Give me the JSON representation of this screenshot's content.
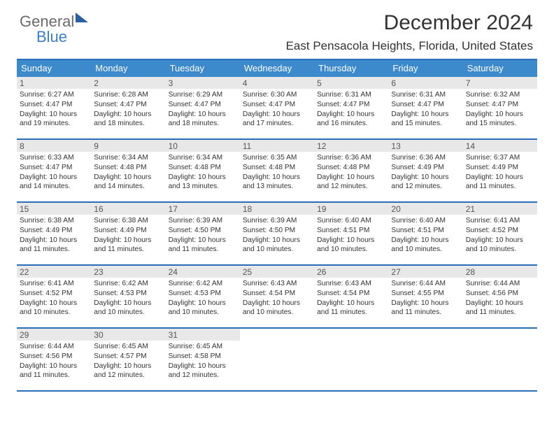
{
  "logo": {
    "part1": "General",
    "part2": "Blue"
  },
  "title": "December 2024",
  "subtitle": "East Pensacola Heights, Florida, United States",
  "colors": {
    "header_bg": "#3c89cc",
    "header_text": "#ffffff",
    "border": "#2a6db8",
    "daynum_bg": "#e8e8e8",
    "daynum_text": "#555555",
    "body_text": "#333333",
    "logo_gray": "#6b6b6b",
    "logo_blue": "#3b7fc4"
  },
  "day_headers": [
    "Sunday",
    "Monday",
    "Tuesday",
    "Wednesday",
    "Thursday",
    "Friday",
    "Saturday"
  ],
  "weeks": [
    [
      {
        "n": "1",
        "sunrise": "Sunrise: 6:27 AM",
        "sunset": "Sunset: 4:47 PM",
        "day1": "Daylight: 10 hours",
        "day2": "and 19 minutes."
      },
      {
        "n": "2",
        "sunrise": "Sunrise: 6:28 AM",
        "sunset": "Sunset: 4:47 PM",
        "day1": "Daylight: 10 hours",
        "day2": "and 18 minutes."
      },
      {
        "n": "3",
        "sunrise": "Sunrise: 6:29 AM",
        "sunset": "Sunset: 4:47 PM",
        "day1": "Daylight: 10 hours",
        "day2": "and 18 minutes."
      },
      {
        "n": "4",
        "sunrise": "Sunrise: 6:30 AM",
        "sunset": "Sunset: 4:47 PM",
        "day1": "Daylight: 10 hours",
        "day2": "and 17 minutes."
      },
      {
        "n": "5",
        "sunrise": "Sunrise: 6:31 AM",
        "sunset": "Sunset: 4:47 PM",
        "day1": "Daylight: 10 hours",
        "day2": "and 16 minutes."
      },
      {
        "n": "6",
        "sunrise": "Sunrise: 6:31 AM",
        "sunset": "Sunset: 4:47 PM",
        "day1": "Daylight: 10 hours",
        "day2": "and 15 minutes."
      },
      {
        "n": "7",
        "sunrise": "Sunrise: 6:32 AM",
        "sunset": "Sunset: 4:47 PM",
        "day1": "Daylight: 10 hours",
        "day2": "and 15 minutes."
      }
    ],
    [
      {
        "n": "8",
        "sunrise": "Sunrise: 6:33 AM",
        "sunset": "Sunset: 4:47 PM",
        "day1": "Daylight: 10 hours",
        "day2": "and 14 minutes."
      },
      {
        "n": "9",
        "sunrise": "Sunrise: 6:34 AM",
        "sunset": "Sunset: 4:48 PM",
        "day1": "Daylight: 10 hours",
        "day2": "and 14 minutes."
      },
      {
        "n": "10",
        "sunrise": "Sunrise: 6:34 AM",
        "sunset": "Sunset: 4:48 PM",
        "day1": "Daylight: 10 hours",
        "day2": "and 13 minutes."
      },
      {
        "n": "11",
        "sunrise": "Sunrise: 6:35 AM",
        "sunset": "Sunset: 4:48 PM",
        "day1": "Daylight: 10 hours",
        "day2": "and 13 minutes."
      },
      {
        "n": "12",
        "sunrise": "Sunrise: 6:36 AM",
        "sunset": "Sunset: 4:48 PM",
        "day1": "Daylight: 10 hours",
        "day2": "and 12 minutes."
      },
      {
        "n": "13",
        "sunrise": "Sunrise: 6:36 AM",
        "sunset": "Sunset: 4:49 PM",
        "day1": "Daylight: 10 hours",
        "day2": "and 12 minutes."
      },
      {
        "n": "14",
        "sunrise": "Sunrise: 6:37 AM",
        "sunset": "Sunset: 4:49 PM",
        "day1": "Daylight: 10 hours",
        "day2": "and 11 minutes."
      }
    ],
    [
      {
        "n": "15",
        "sunrise": "Sunrise: 6:38 AM",
        "sunset": "Sunset: 4:49 PM",
        "day1": "Daylight: 10 hours",
        "day2": "and 11 minutes."
      },
      {
        "n": "16",
        "sunrise": "Sunrise: 6:38 AM",
        "sunset": "Sunset: 4:49 PM",
        "day1": "Daylight: 10 hours",
        "day2": "and 11 minutes."
      },
      {
        "n": "17",
        "sunrise": "Sunrise: 6:39 AM",
        "sunset": "Sunset: 4:50 PM",
        "day1": "Daylight: 10 hours",
        "day2": "and 11 minutes."
      },
      {
        "n": "18",
        "sunrise": "Sunrise: 6:39 AM",
        "sunset": "Sunset: 4:50 PM",
        "day1": "Daylight: 10 hours",
        "day2": "and 10 minutes."
      },
      {
        "n": "19",
        "sunrise": "Sunrise: 6:40 AM",
        "sunset": "Sunset: 4:51 PM",
        "day1": "Daylight: 10 hours",
        "day2": "and 10 minutes."
      },
      {
        "n": "20",
        "sunrise": "Sunrise: 6:40 AM",
        "sunset": "Sunset: 4:51 PM",
        "day1": "Daylight: 10 hours",
        "day2": "and 10 minutes."
      },
      {
        "n": "21",
        "sunrise": "Sunrise: 6:41 AM",
        "sunset": "Sunset: 4:52 PM",
        "day1": "Daylight: 10 hours",
        "day2": "and 10 minutes."
      }
    ],
    [
      {
        "n": "22",
        "sunrise": "Sunrise: 6:41 AM",
        "sunset": "Sunset: 4:52 PM",
        "day1": "Daylight: 10 hours",
        "day2": "and 10 minutes."
      },
      {
        "n": "23",
        "sunrise": "Sunrise: 6:42 AM",
        "sunset": "Sunset: 4:53 PM",
        "day1": "Daylight: 10 hours",
        "day2": "and 10 minutes."
      },
      {
        "n": "24",
        "sunrise": "Sunrise: 6:42 AM",
        "sunset": "Sunset: 4:53 PM",
        "day1": "Daylight: 10 hours",
        "day2": "and 10 minutes."
      },
      {
        "n": "25",
        "sunrise": "Sunrise: 6:43 AM",
        "sunset": "Sunset: 4:54 PM",
        "day1": "Daylight: 10 hours",
        "day2": "and 10 minutes."
      },
      {
        "n": "26",
        "sunrise": "Sunrise: 6:43 AM",
        "sunset": "Sunset: 4:54 PM",
        "day1": "Daylight: 10 hours",
        "day2": "and 11 minutes."
      },
      {
        "n": "27",
        "sunrise": "Sunrise: 6:44 AM",
        "sunset": "Sunset: 4:55 PM",
        "day1": "Daylight: 10 hours",
        "day2": "and 11 minutes."
      },
      {
        "n": "28",
        "sunrise": "Sunrise: 6:44 AM",
        "sunset": "Sunset: 4:56 PM",
        "day1": "Daylight: 10 hours",
        "day2": "and 11 minutes."
      }
    ],
    [
      {
        "n": "29",
        "sunrise": "Sunrise: 6:44 AM",
        "sunset": "Sunset: 4:56 PM",
        "day1": "Daylight: 10 hours",
        "day2": "and 11 minutes."
      },
      {
        "n": "30",
        "sunrise": "Sunrise: 6:45 AM",
        "sunset": "Sunset: 4:57 PM",
        "day1": "Daylight: 10 hours",
        "day2": "and 12 minutes."
      },
      {
        "n": "31",
        "sunrise": "Sunrise: 6:45 AM",
        "sunset": "Sunset: 4:58 PM",
        "day1": "Daylight: 10 hours",
        "day2": "and 12 minutes."
      },
      null,
      null,
      null,
      null
    ]
  ]
}
